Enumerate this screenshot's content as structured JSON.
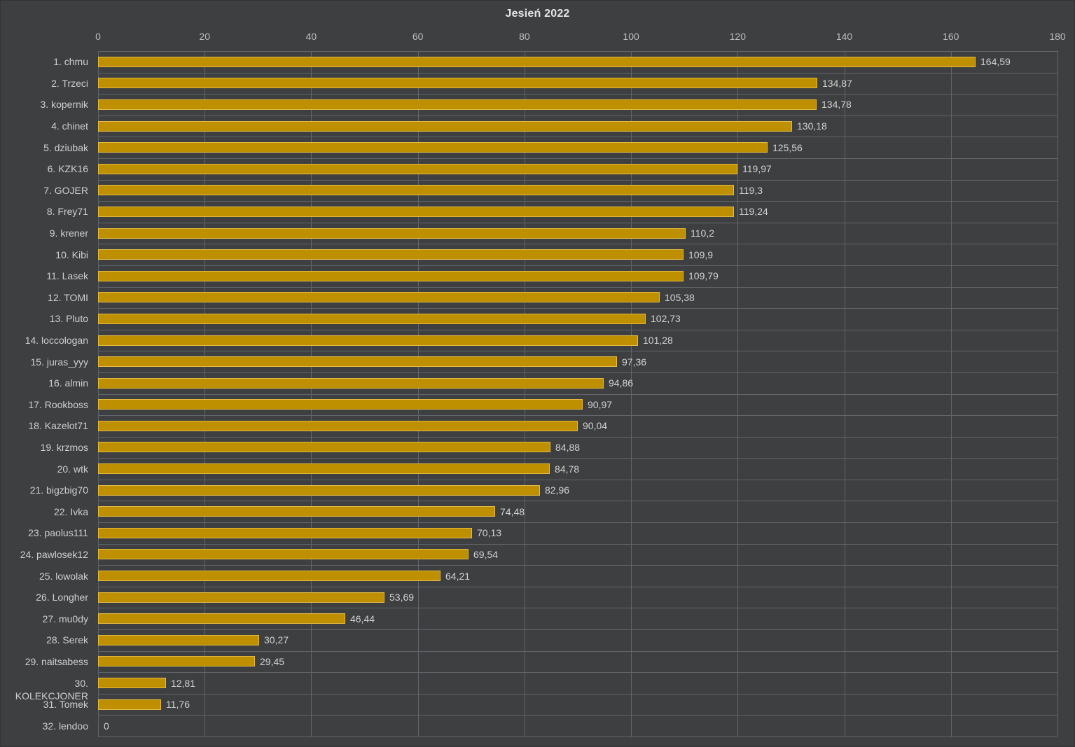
{
  "title": "Jesień 2022",
  "colors": {
    "background": "#3E3F40",
    "bar_fill": "#BE9000",
    "bar_border": "#E4BB45",
    "gridline": "#60666B",
    "label_text": "#CFCFCF",
    "tick_text": "#BFBFBF",
    "title_text": "#E4E4E4"
  },
  "chart_data": {
    "type": "bar",
    "orientation": "horizontal",
    "title": "Jesień 2022",
    "xlabel": "",
    "ylabel": "",
    "xlim": [
      0,
      180
    ],
    "x_ticks": [
      0,
      20,
      40,
      60,
      80,
      100,
      120,
      140,
      160,
      180
    ],
    "grid": true,
    "legend": "none",
    "categories": [
      "1. chmu",
      "2. Trzeci",
      "3. kopernik",
      "4. chinet",
      "5. dziubak",
      "6. KZK16",
      "7. GOJER",
      "8. Frey71",
      "9. krener",
      "10. Kibi",
      "11. Lasek",
      "12. TOMI",
      "13. Pluto",
      "14. loccologan",
      "15. juras_yyy",
      "16. almin",
      "17. Rookboss",
      "18. Kazelot71",
      "19. krzmos",
      "20. wtk",
      "21. bigzbig70",
      "22. Ivka",
      "23. paolus111",
      "24. pawlosek12",
      "25. lowolak",
      "26. Longher",
      "27. mu0dy",
      "28. Serek",
      "29. naitsabess",
      "30. KOLEKCJONER",
      "31. Tomek",
      "32. lendoo"
    ],
    "values": [
      164.59,
      134.87,
      134.78,
      130.18,
      125.56,
      119.97,
      119.3,
      119.24,
      110.2,
      109.9,
      109.79,
      105.38,
      102.73,
      101.28,
      97.36,
      94.86,
      90.97,
      90.04,
      84.88,
      84.78,
      82.96,
      74.48,
      70.13,
      69.54,
      64.21,
      53.69,
      46.44,
      30.27,
      29.45,
      12.81,
      11.76,
      0
    ],
    "value_labels": [
      "164,59",
      "134,87",
      "134,78",
      "130,18",
      "125,56",
      "119,97",
      "119,3",
      "119,24",
      "110,2",
      "109,9",
      "109,79",
      "105,38",
      "102,73",
      "101,28",
      "97,36",
      "94,86",
      "90,97",
      "90,04",
      "84,88",
      "84,78",
      "82,96",
      "74,48",
      "70,13",
      "69,54",
      "64,21",
      "53,69",
      "46,44",
      "30,27",
      "29,45",
      "12,81",
      "11,76",
      "0"
    ]
  }
}
